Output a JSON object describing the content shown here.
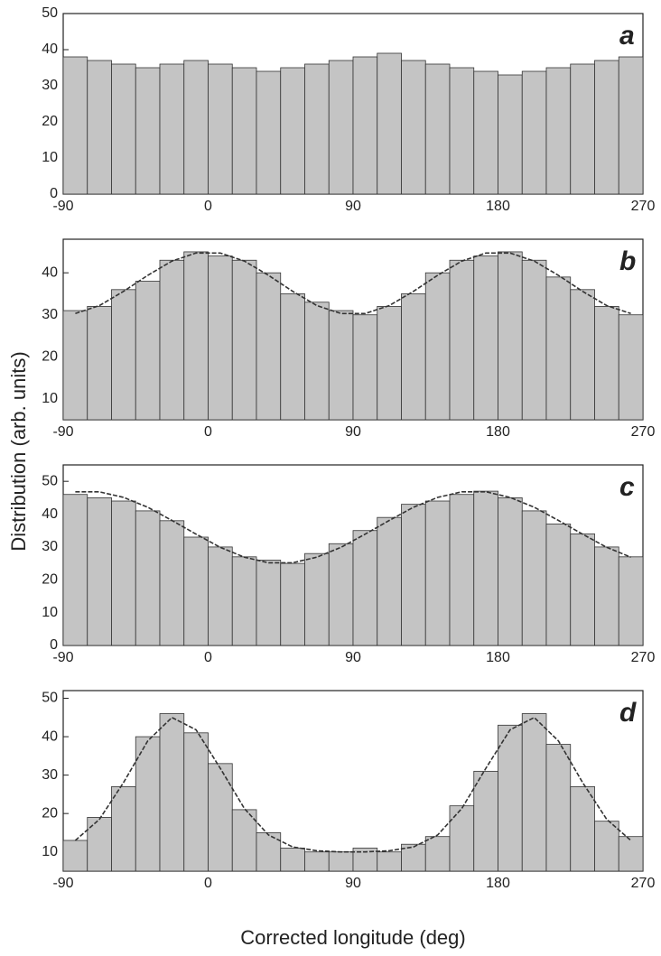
{
  "chart_data": [
    {
      "type": "histogram",
      "label": "a",
      "bins": [
        -90,
        -75,
        -60,
        -45,
        -30,
        -15,
        0,
        15,
        30,
        45,
        60,
        75,
        90,
        105,
        120,
        135,
        150,
        165,
        180,
        195,
        210,
        225,
        240,
        255,
        270
      ],
      "values": [
        38,
        37,
        36,
        35,
        36,
        37,
        36,
        35,
        34,
        35,
        36,
        37,
        38,
        39,
        37,
        36,
        35,
        34,
        33,
        34,
        35,
        36,
        37,
        38
      ],
      "xlim": [
        -90,
        270
      ],
      "xticks": [
        -90,
        0,
        90,
        180,
        270
      ],
      "ylim": [
        0,
        50
      ],
      "yticks": [
        0,
        10,
        20,
        30,
        40,
        50
      ],
      "color": "#c4c4c4"
    },
    {
      "type": "histogram",
      "label": "b",
      "ylabel": "Distribution (arb. units)",
      "bins": [
        -90,
        -75,
        -60,
        -45,
        -30,
        -15,
        0,
        15,
        30,
        45,
        60,
        75,
        90,
        105,
        120,
        135,
        150,
        165,
        180,
        195,
        210,
        225,
        240,
        255,
        270
      ],
      "values": [
        31,
        32,
        36,
        38,
        43,
        45,
        44,
        43,
        40,
        35,
        33,
        31,
        30,
        32,
        35,
        40,
        43,
        44,
        45,
        43,
        39,
        36,
        32,
        30
      ],
      "fit": [
        30.3,
        32.2,
        35.6,
        39.4,
        42.8,
        44.7,
        44.7,
        42.8,
        39.4,
        35.6,
        32.2,
        30.3,
        30.3,
        32.2,
        35.6,
        39.4,
        42.8,
        44.7,
        44.7,
        42.8,
        39.4,
        35.6,
        32.2,
        30.3
      ],
      "xlim": [
        -90,
        270
      ],
      "xticks": [
        -90,
        0,
        90,
        180,
        270
      ],
      "ylim": [
        5,
        48
      ],
      "yticks": [
        10,
        20,
        30,
        40
      ],
      "color": "#c4c4c4"
    },
    {
      "type": "histogram",
      "label": "c",
      "bins": [
        -90,
        -75,
        -60,
        -45,
        -30,
        -15,
        0,
        15,
        30,
        45,
        60,
        75,
        90,
        105,
        120,
        135,
        150,
        165,
        180,
        195,
        210,
        225,
        240,
        255,
        270
      ],
      "values": [
        46,
        45,
        44,
        41,
        38,
        33,
        30,
        27,
        26,
        25,
        28,
        31,
        35,
        39,
        43,
        44,
        46,
        47,
        45,
        41,
        37,
        34,
        30,
        27
      ],
      "fit": [
        46.8,
        46.8,
        45.1,
        42.1,
        38.1,
        33.9,
        29.9,
        26.9,
        25.2,
        25.2,
        26.9,
        29.9,
        33.9,
        38.1,
        42.1,
        45.1,
        46.8,
        46.8,
        45.1,
        42.1,
        38.1,
        33.9,
        29.9,
        26.9
      ],
      "xlim": [
        -90,
        270
      ],
      "xticks": [
        -90,
        0,
        90,
        180,
        270
      ],
      "ylim": [
        0,
        55
      ],
      "yticks": [
        0,
        10,
        20,
        30,
        40,
        50
      ],
      "color": "#c4c4c4"
    },
    {
      "type": "histogram",
      "label": "d",
      "xlabel": "Corrected longitude (deg)",
      "bins": [
        -90,
        -75,
        -60,
        -45,
        -30,
        -15,
        0,
        15,
        30,
        45,
        60,
        75,
        90,
        105,
        120,
        135,
        150,
        165,
        180,
        195,
        210,
        225,
        240,
        255,
        270
      ],
      "values": [
        13,
        19,
        27,
        40,
        46,
        41,
        33,
        21,
        15,
        11,
        10,
        10,
        11,
        10,
        12,
        14,
        22,
        31,
        43,
        46,
        38,
        27,
        18,
        14
      ],
      "fit": [
        13.0,
        18.5,
        28.1,
        38.9,
        45.0,
        41.8,
        31.8,
        21.3,
        14.4,
        11.3,
        10.3,
        10.0,
        10.0,
        10.3,
        11.3,
        14.4,
        21.3,
        31.8,
        41.8,
        45.0,
        38.9,
        28.1,
        18.5,
        13.0
      ],
      "xlim": [
        -90,
        270
      ],
      "xticks": [
        -90,
        0,
        90,
        180,
        270
      ],
      "ylim": [
        5,
        52
      ],
      "yticks": [
        10,
        20,
        30,
        40,
        50
      ],
      "color": "#c4c4c4"
    }
  ]
}
